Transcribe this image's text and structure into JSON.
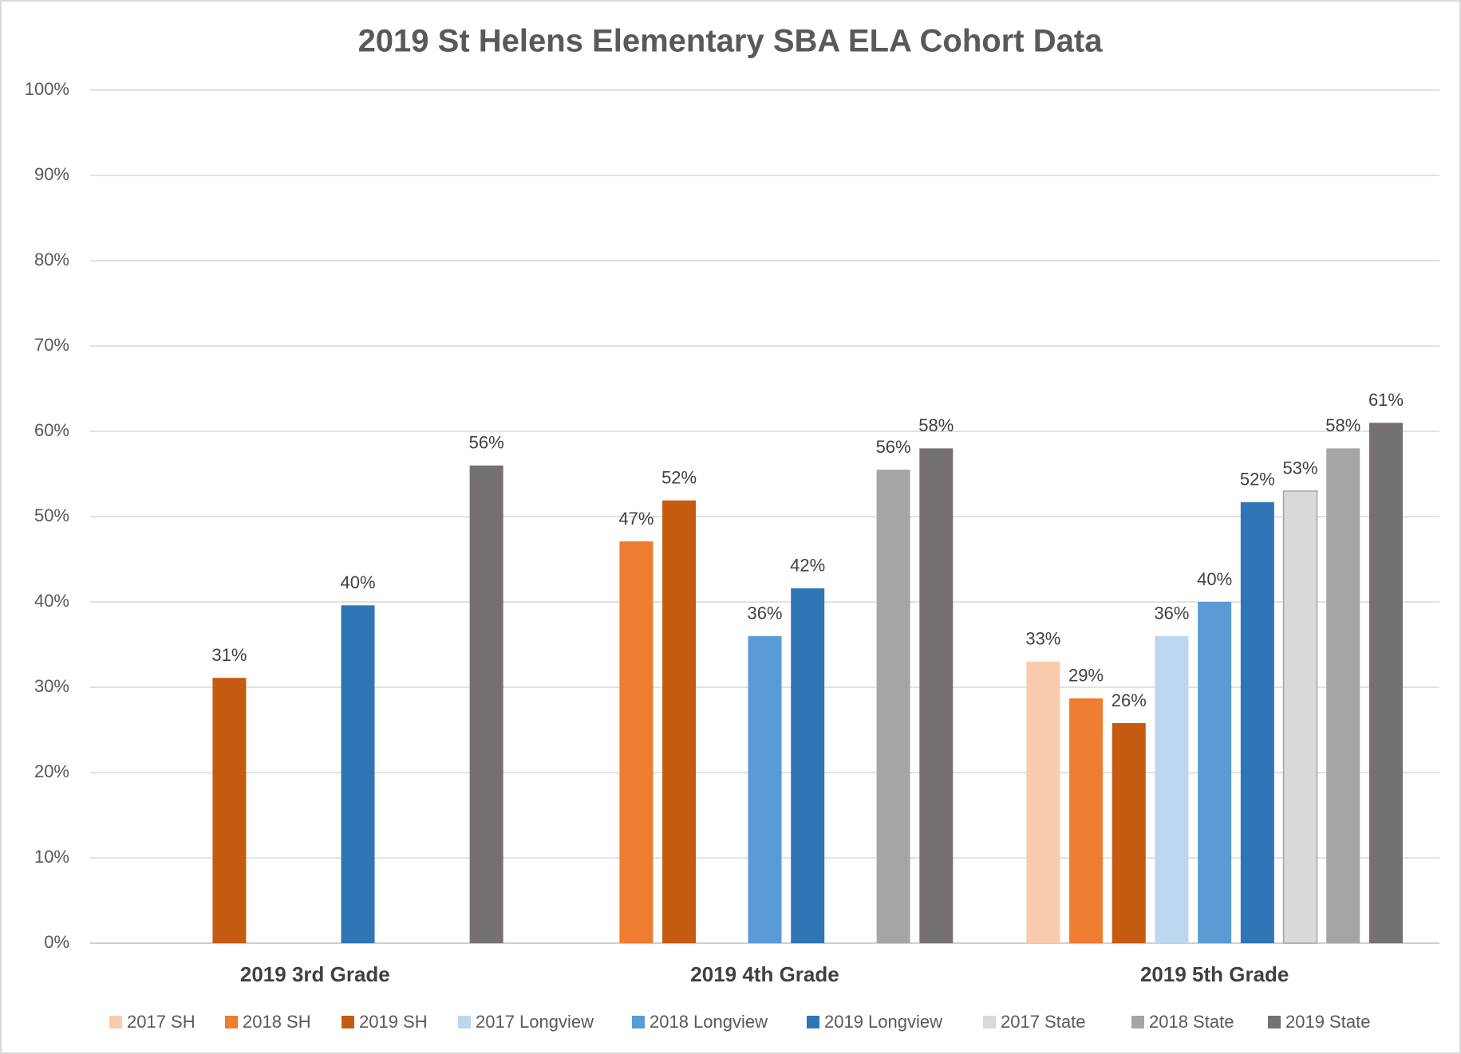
{
  "chart_data": {
    "type": "bar",
    "title": "2019 St Helens Elementary SBA ELA Cohort Data",
    "categories": [
      "2019 3rd Grade",
      "2019 4th Grade",
      "2019 5th Grade"
    ],
    "series": [
      {
        "name": "2017 SH",
        "color": "#f8cbad",
        "values": [
          null,
          null,
          33
        ],
        "value_labels": [
          null,
          null,
          "33%"
        ]
      },
      {
        "name": "2018 SH",
        "color": "#ed7d31",
        "values": [
          null,
          47.1,
          28.7
        ],
        "value_labels": [
          null,
          "47%",
          "29%"
        ]
      },
      {
        "name": "2019 SH",
        "color": "#c55a11",
        "values": [
          31.1,
          51.9,
          25.8
        ],
        "value_labels": [
          "31%",
          "52%",
          "26%"
        ]
      },
      {
        "name": "2017 Longview",
        "color": "#bdd7ee",
        "values": [
          null,
          null,
          36
        ],
        "value_labels": [
          null,
          null,
          "36%"
        ]
      },
      {
        "name": "2018 Longview",
        "color": "#5b9bd5",
        "values": [
          null,
          36,
          40
        ],
        "value_labels": [
          null,
          "36%",
          "40%"
        ]
      },
      {
        "name": "2019 Longview",
        "color": "#2e75b6",
        "values": [
          39.6,
          41.6,
          51.7
        ],
        "value_labels": [
          "40%",
          "42%",
          "52%"
        ]
      },
      {
        "name": "2017 State",
        "color": "#d9d9d9",
        "values": [
          null,
          null,
          53
        ],
        "value_labels": [
          null,
          null,
          "53%"
        ]
      },
      {
        "name": "2018 State",
        "color": "#a5a5a5",
        "values": [
          null,
          55.5,
          58
        ],
        "value_labels": [
          null,
          "56%",
          "58%"
        ]
      },
      {
        "name": "2019 State",
        "color": "#767171",
        "values": [
          56,
          58,
          61
        ],
        "value_labels": [
          "56%",
          "58%",
          "61%"
        ]
      }
    ],
    "ylim": [
      0,
      100
    ],
    "yticks": [
      {
        "value": 0,
        "label": "0%"
      },
      {
        "value": 10,
        "label": "10%"
      },
      {
        "value": 20,
        "label": "20%"
      },
      {
        "value": 30,
        "label": "30%"
      },
      {
        "value": 40,
        "label": "40%"
      },
      {
        "value": 50,
        "label": "50%"
      },
      {
        "value": 60,
        "label": "60%"
      },
      {
        "value": 70,
        "label": "70%"
      },
      {
        "value": 80,
        "label": "80%"
      },
      {
        "value": 90,
        "label": "90%"
      },
      {
        "value": 100,
        "label": "100%"
      }
    ],
    "grid": true,
    "legend": "bottom"
  }
}
